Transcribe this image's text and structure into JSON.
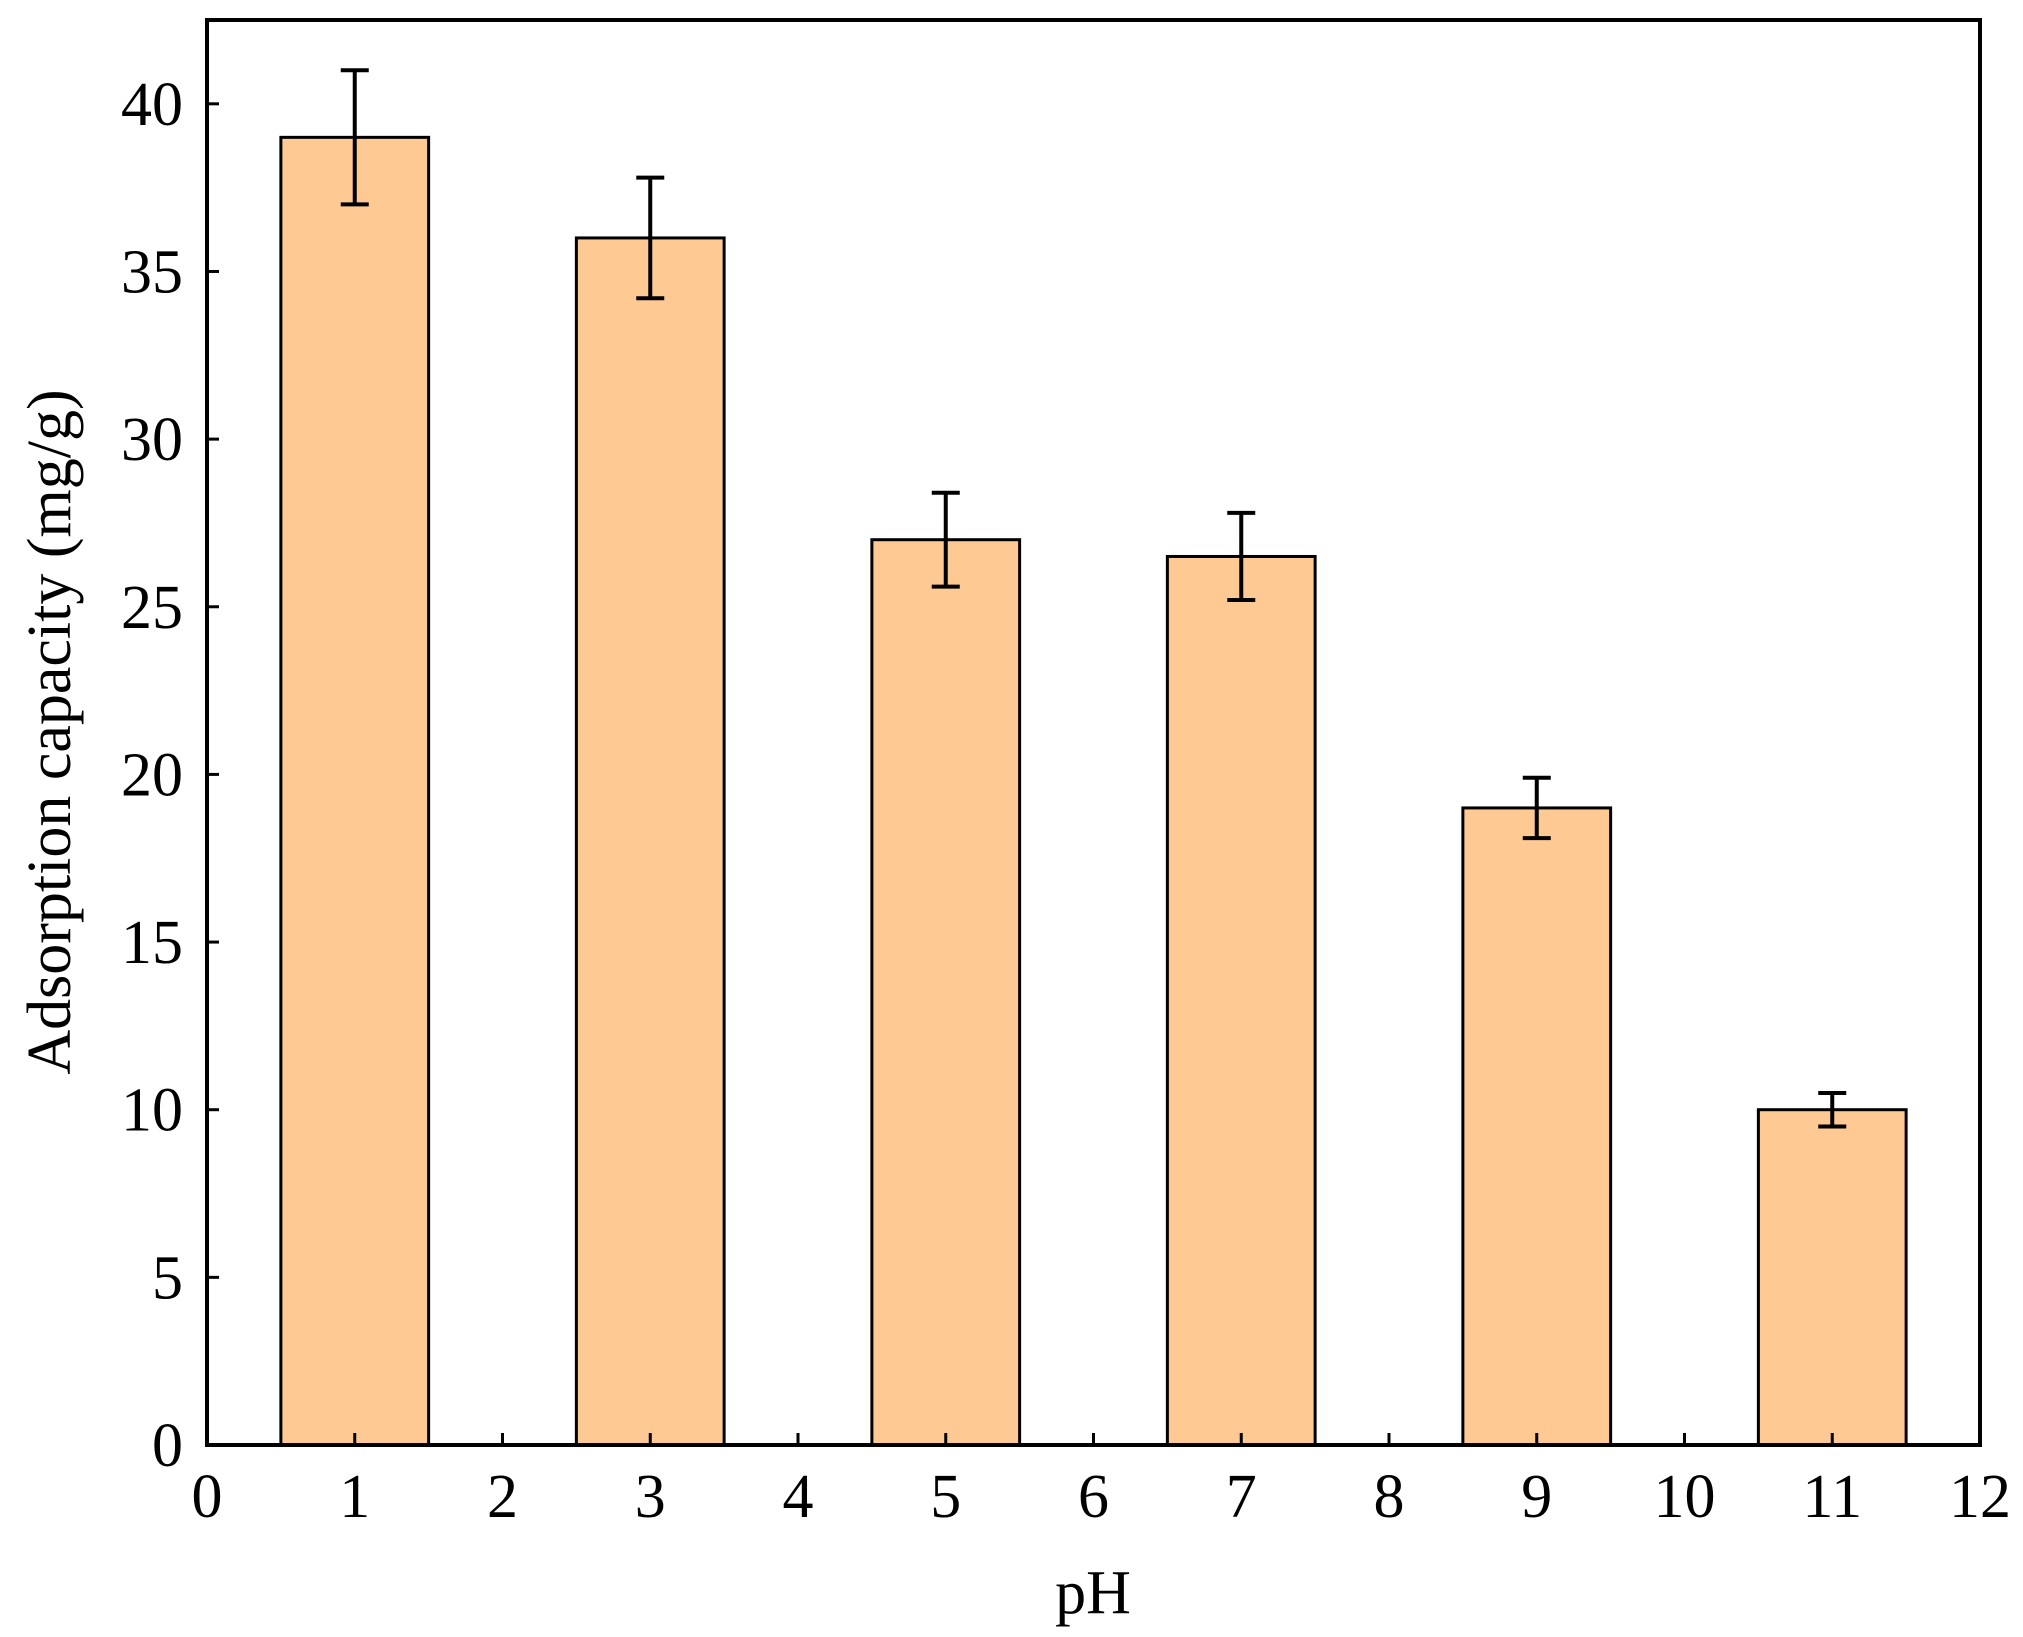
{
  "chart_data": {
    "type": "bar",
    "xlabel": "pH",
    "ylabel": "Adsorption capacity (mg/g)",
    "xlim": [
      0,
      12
    ],
    "ylim": [
      0,
      42.5
    ],
    "x": [
      1,
      3,
      5,
      7,
      9,
      11
    ],
    "values": [
      39.0,
      36.0,
      27.0,
      26.5,
      19.0,
      10.0
    ],
    "errors": [
      2.0,
      1.8,
      1.4,
      1.3,
      0.9,
      0.5
    ],
    "bar_width": 1.0,
    "xticks": [
      0,
      1,
      2,
      3,
      4,
      5,
      6,
      7,
      8,
      9,
      10,
      11,
      12
    ],
    "yticks": [
      0,
      5,
      10,
      15,
      20,
      25,
      30,
      35,
      40
    ],
    "bar_color": "#FFC994",
    "edge_color": "#000000",
    "grid": false,
    "legend": "none"
  }
}
